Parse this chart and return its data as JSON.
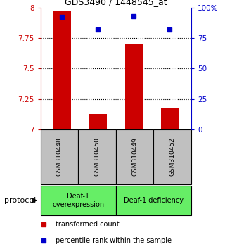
{
  "title": "GDS3490 / 1448545_at",
  "samples": [
    "GSM310448",
    "GSM310450",
    "GSM310449",
    "GSM310452"
  ],
  "red_values": [
    7.97,
    7.13,
    7.7,
    7.18
  ],
  "blue_values": [
    92,
    82,
    93,
    82
  ],
  "ylim_left": [
    7.0,
    8.0
  ],
  "ylim_right": [
    0,
    100
  ],
  "yticks_left": [
    7.0,
    7.25,
    7.5,
    7.75,
    8.0
  ],
  "ytick_labels_left": [
    "7",
    "7.25",
    "7.5",
    "7.75",
    "8"
  ],
  "yticks_right": [
    0,
    25,
    50,
    75,
    100
  ],
  "ytick_labels_right": [
    "0",
    "25",
    "50",
    "75",
    "100%"
  ],
  "dotted_lines": [
    7.25,
    7.5,
    7.75
  ],
  "red_color": "#cc0000",
  "blue_color": "#0000cc",
  "bar_width": 0.5,
  "groups": [
    {
      "label": "Deaf-1\noverexpression",
      "color": "#66ee66"
    },
    {
      "label": "Deaf-1 deficiency",
      "color": "#66ee66"
    }
  ],
  "protocol_label": "protocol",
  "legend_red": "transformed count",
  "legend_blue": "percentile rank within the sample",
  "x_positions": [
    0,
    1,
    2,
    3
  ],
  "sample_area_color": "#c0c0c0",
  "xlim": [
    -0.6,
    3.6
  ]
}
